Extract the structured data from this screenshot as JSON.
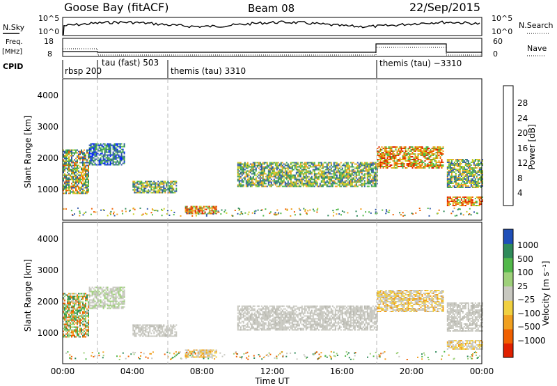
{
  "header": {
    "station": "Goose Bay (fitACF)",
    "beam": "Beam 08",
    "date": "22/Sep/2015"
  },
  "noise_panel": {
    "left_label": "N.Sky",
    "right_label": "N.Search",
    "left_ticks": [
      "10^5",
      "10^0"
    ],
    "right_ticks": [
      "10^5",
      "10^0"
    ]
  },
  "freq_panel": {
    "left_label_1": "Freq.",
    "left_label_2": "[MHz]",
    "right_label": "Nave",
    "left_ticks": [
      "18",
      "8"
    ],
    "right_ticks": [
      "60",
      "0"
    ]
  },
  "cpid_panel": {
    "label": "CPID",
    "modes": [
      "rbsp 200",
      "tau (fast) 503",
      "themis (tau) 3310",
      "themis (tau) −3310"
    ]
  },
  "axes": {
    "ylabel": "Slant Range [km]",
    "y_ticks": [
      "1000",
      "2000",
      "3000",
      "4000"
    ],
    "x_ticks": [
      "00:00",
      "04:00",
      "08:00",
      "12:00",
      "16:00",
      "20:00",
      "00:00"
    ],
    "xlabel": "Time UT"
  },
  "colorbars": {
    "power": {
      "label": "Power [dB]",
      "ticks": [
        "4",
        "8",
        "12",
        "16",
        "20",
        "24",
        "28"
      ],
      "colors": [
        "#0022ff",
        "#2f57a8",
        "#2f8a5a",
        "#52b84a",
        "#c8cc22",
        "#f0a020",
        "#f06000",
        "#e02000"
      ]
    },
    "velocity": {
      "label": "Velocity [m s⁻¹]",
      "ticks": [
        "1000",
        "500",
        "100",
        "25",
        "−25",
        "−100",
        "−500",
        "−1000"
      ],
      "colors": [
        "#1f4fb8",
        "#2f8a5a",
        "#52b84a",
        "#9ed07a",
        "#c8c8c0",
        "#f0d040",
        "#f0a020",
        "#f06000",
        "#e02000"
      ]
    }
  },
  "chart_data": {
    "type": "heatmap",
    "title": "Goose Bay (fitACF)",
    "xlabel": "Time UT",
    "ylabel": "Slant Range [km]",
    "xlim": [
      0,
      24
    ],
    "ylim": [
      180,
      4500
    ],
    "mode_boundaries_hours": [
      2,
      6,
      18
    ],
    "power_regions": [
      {
        "t0": 0.0,
        "t1": 1.5,
        "r0": 900,
        "r1": 2300,
        "value": "mixed"
      },
      {
        "t0": 1.5,
        "t1": 3.5,
        "r0": 1800,
        "r1": 2500,
        "value": "low"
      },
      {
        "t0": 4.0,
        "t1": 6.5,
        "r0": 900,
        "r1": 1300,
        "value": "mid"
      },
      {
        "t0": 7.0,
        "t1": 8.8,
        "r0": 250,
        "r1": 500,
        "value": "high"
      },
      {
        "t0": 10.0,
        "t1": 18.0,
        "r0": 1100,
        "r1": 1900,
        "value": "mid"
      },
      {
        "t0": 18.0,
        "t1": 21.8,
        "r0": 1700,
        "r1": 2400,
        "value": "high"
      },
      {
        "t0": 22.0,
        "t1": 24.0,
        "r0": 500,
        "r1": 800,
        "value": "high"
      },
      {
        "t0": 22.0,
        "t1": 24.0,
        "r0": 1100,
        "r1": 2000,
        "value": "mid"
      }
    ]
  }
}
